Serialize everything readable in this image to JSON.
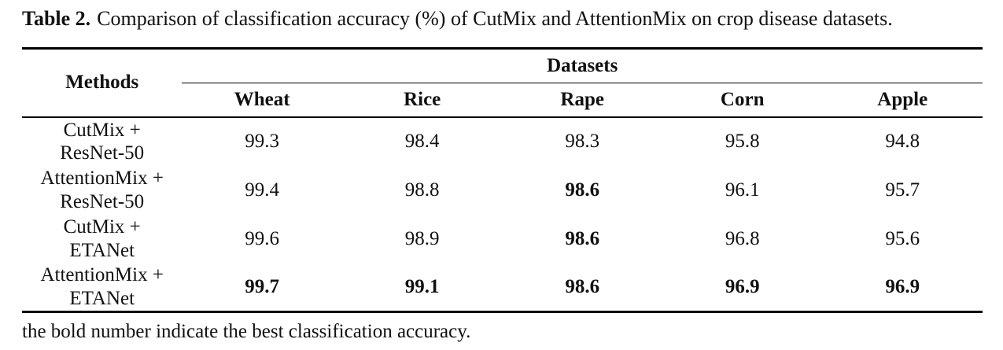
{
  "caption": {
    "label": "Table 2.",
    "text": "Comparison of classification accuracy (%) of CutMix and AttentionMix on crop disease datasets."
  },
  "table": {
    "methods_header": "Methods",
    "datasets_header": "Datasets",
    "columns": [
      "Wheat",
      "Rice",
      "Rape",
      "Corn",
      "Apple"
    ],
    "rows": [
      {
        "method_line1": "CutMix +",
        "method_line2": "ResNet-50",
        "values": [
          {
            "v": "99.3",
            "w": "normal"
          },
          {
            "v": "98.4",
            "w": "normal"
          },
          {
            "v": "98.3",
            "w": "normal"
          },
          {
            "v": "95.8",
            "w": "normal"
          },
          {
            "v": "94.8",
            "w": "normal"
          }
        ]
      },
      {
        "method_line1": "AttentionMix +",
        "method_line2": "ResNet-50",
        "values": [
          {
            "v": "99.4",
            "w": "normal"
          },
          {
            "v": "98.8",
            "w": "normal"
          },
          {
            "v": "98.6",
            "w": "bold"
          },
          {
            "v": "96.1",
            "w": "normal"
          },
          {
            "v": "95.7",
            "w": "normal"
          }
        ]
      },
      {
        "method_line1": "CutMix +",
        "method_line2": "ETANet",
        "values": [
          {
            "v": "99.6",
            "w": "normal"
          },
          {
            "v": "98.9",
            "w": "normal"
          },
          {
            "v": "98.6",
            "w": "bold"
          },
          {
            "v": "96.8",
            "w": "normal"
          },
          {
            "v": "95.6",
            "w": "normal"
          }
        ]
      },
      {
        "method_line1": "AttentionMix +",
        "method_line2": "ETANet",
        "values": [
          {
            "v": "99.7",
            "w": "bold"
          },
          {
            "v": "99.1",
            "w": "bold"
          },
          {
            "v": "98.6",
            "w": "bold"
          },
          {
            "v": "96.9",
            "w": "bold"
          },
          {
            "v": "96.9",
            "w": "bold"
          }
        ]
      }
    ]
  },
  "footnote": "the bold number indicate the best classification accuracy."
}
